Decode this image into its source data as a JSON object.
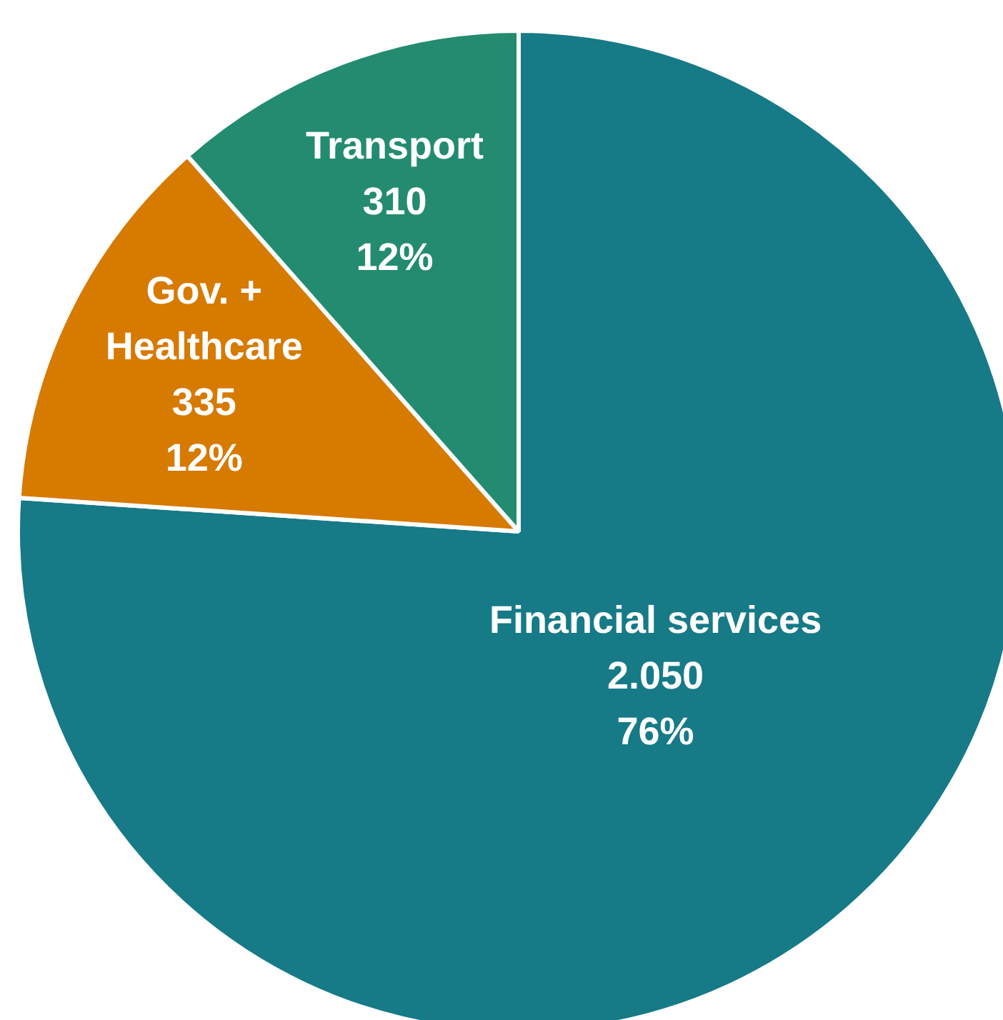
{
  "chart_data": {
    "type": "pie",
    "categories": [
      "Financial services",
      "Gov. + Healthcare",
      "Transport"
    ],
    "values": [
      2050,
      335,
      310
    ],
    "value_labels": [
      "2.050\n76%",
      "335\n12%",
      "310\n12%"
    ],
    "colors": [
      "#167a87",
      "#d67a00",
      "#238b70"
    ],
    "legend": false
  }
}
